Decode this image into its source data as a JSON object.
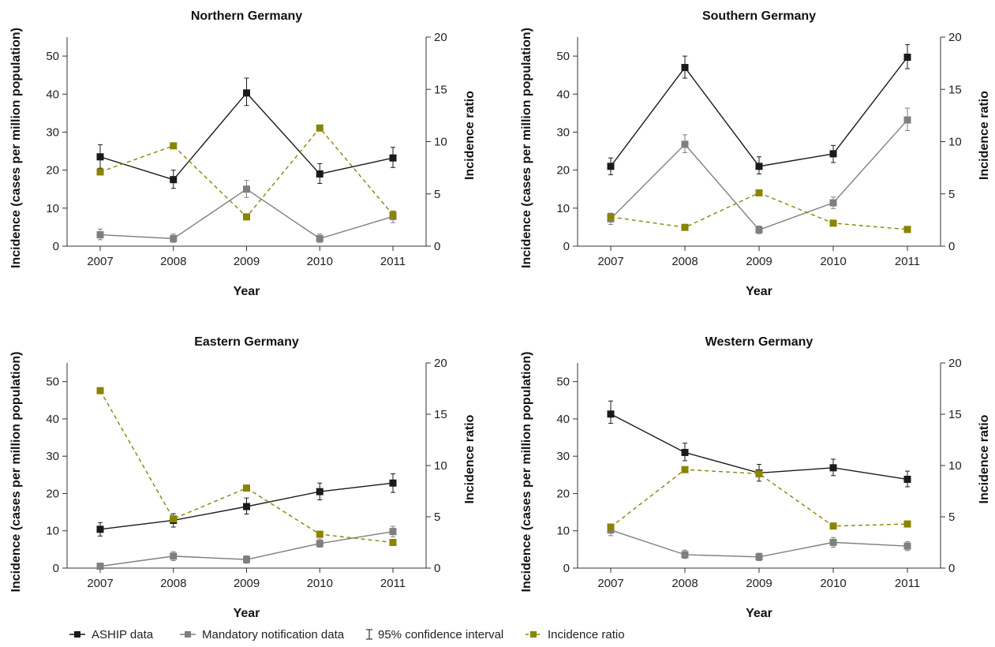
{
  "colors": {
    "ashipColor": "#1a1a1a",
    "mandatoryColor": "#7f7f7f",
    "ratioColor": "#8a8400",
    "axisColor": "#333333"
  },
  "legend": {
    "items": [
      {
        "key": "ashipColor",
        "label": "ASHIP data",
        "style": "line-square"
      },
      {
        "key": "mandatoryColor",
        "label": "Mandatory notification data",
        "style": "line-square"
      },
      {
        "key": "axisColor",
        "label": "95% confidence interval",
        "style": "errorbar"
      },
      {
        "key": "ratioColor",
        "label": "Incidence ratio",
        "style": "dashed-square"
      }
    ]
  },
  "chart_data": [
    {
      "type": "line",
      "title": "Northern Germany",
      "xlabel": "Year",
      "ylabel": "Incidence (cases per million population)",
      "y2label": "Incidence ratio",
      "x": [
        "2007",
        "2008",
        "2009",
        "2010",
        "2011"
      ],
      "ylim": [
        0,
        55
      ],
      "yticks": [
        0,
        10,
        20,
        30,
        40,
        50
      ],
      "y2lim": [
        0,
        20
      ],
      "y2ticks": [
        0,
        5,
        10,
        15,
        20
      ],
      "series": [
        {
          "name": "ASHIP data",
          "axis": "left",
          "values": [
            23.5,
            17.5,
            40.3,
            19.0,
            23.2
          ],
          "ci_low": [
            20.5,
            15.2,
            37.0,
            16.5,
            20.7
          ],
          "ci_high": [
            26.7,
            20.0,
            44.2,
            21.7,
            26.0
          ]
        },
        {
          "name": "Mandatory notification data",
          "axis": "left",
          "values": [
            3.0,
            2.0,
            15.0,
            2.0,
            7.8
          ],
          "ci_low": [
            1.7,
            1.0,
            12.8,
            1.0,
            6.2
          ],
          "ci_high": [
            4.5,
            3.2,
            17.3,
            3.2,
            9.3
          ]
        },
        {
          "name": "Incidence ratio",
          "axis": "right",
          "values": [
            7.1,
            9.6,
            2.8,
            11.3,
            3.0
          ]
        }
      ]
    },
    {
      "type": "line",
      "title": "Southern Germany",
      "xlabel": "Year",
      "ylabel": "Incidence (cases per million population)",
      "y2label": "Incidence ratio",
      "x": [
        "2007",
        "2008",
        "2009",
        "2010",
        "2011"
      ],
      "ylim": [
        0,
        55
      ],
      "yticks": [
        0,
        10,
        20,
        30,
        40,
        50
      ],
      "y2lim": [
        0,
        20
      ],
      "y2ticks": [
        0,
        5,
        10,
        15,
        20
      ],
      "series": [
        {
          "name": "ASHIP data",
          "axis": "left",
          "values": [
            21.0,
            47.0,
            21.0,
            24.3,
            49.7
          ],
          "ci_low": [
            18.8,
            44.2,
            19.0,
            22.0,
            46.7
          ],
          "ci_high": [
            23.2,
            50.0,
            23.5,
            26.5,
            53.0
          ]
        },
        {
          "name": "Mandatory notification data",
          "axis": "left",
          "values": [
            7.2,
            26.8,
            4.3,
            11.4,
            33.2
          ],
          "ci_low": [
            5.7,
            24.6,
            3.3,
            9.9,
            30.4
          ],
          "ci_high": [
            8.7,
            29.3,
            5.3,
            12.9,
            36.3
          ]
        },
        {
          "name": "Incidence ratio",
          "axis": "right",
          "values": [
            2.8,
            1.8,
            5.1,
            2.2,
            1.6
          ]
        }
      ]
    },
    {
      "type": "line",
      "title": "Eastern Germany",
      "xlabel": "Year",
      "ylabel": "Incidence (cases per million population)",
      "y2label": "Incidence ratio",
      "x": [
        "2007",
        "2008",
        "2009",
        "2010",
        "2011"
      ],
      "ylim": [
        0,
        55
      ],
      "yticks": [
        0,
        10,
        20,
        30,
        40,
        50
      ],
      "y2lim": [
        0,
        20
      ],
      "y2ticks": [
        0,
        5,
        10,
        15,
        20
      ],
      "series": [
        {
          "name": "ASHIP data",
          "axis": "left",
          "values": [
            10.4,
            12.8,
            16.5,
            20.5,
            22.8
          ],
          "ci_low": [
            8.6,
            11.0,
            14.5,
            18.3,
            20.3
          ],
          "ci_high": [
            12.2,
            14.6,
            18.8,
            22.8,
            25.3
          ]
        },
        {
          "name": "Mandatory notification data",
          "axis": "left",
          "values": [
            0.5,
            3.2,
            2.3,
            6.6,
            9.8
          ],
          "ci_low": [
            0.0,
            2.0,
            1.3,
            5.6,
            8.4
          ],
          "ci_high": [
            1.3,
            4.4,
            3.3,
            7.8,
            11.2
          ]
        },
        {
          "name": "Incidence ratio",
          "axis": "right",
          "values": [
            17.3,
            4.8,
            7.8,
            3.3,
            2.5
          ]
        }
      ]
    },
    {
      "type": "line",
      "title": "Western Germany",
      "xlabel": "Year",
      "ylabel": "Incidence (cases per million population)",
      "y2label": "Incidence ratio",
      "x": [
        "2007",
        "2008",
        "2009",
        "2010",
        "2011"
      ],
      "ylim": [
        0,
        55
      ],
      "yticks": [
        0,
        10,
        20,
        30,
        40,
        50
      ],
      "y2lim": [
        0,
        20
      ],
      "y2ticks": [
        0,
        5,
        10,
        15,
        20
      ],
      "series": [
        {
          "name": "ASHIP data",
          "axis": "left",
          "values": [
            41.3,
            31.0,
            25.5,
            26.9,
            23.8
          ],
          "ci_low": [
            38.8,
            28.8,
            23.3,
            24.8,
            21.8
          ],
          "ci_high": [
            44.8,
            33.5,
            27.8,
            29.2,
            26.0
          ]
        },
        {
          "name": "Mandatory notification data",
          "axis": "left",
          "values": [
            10.2,
            3.6,
            3.0,
            6.9,
            5.9
          ],
          "ci_low": [
            8.7,
            2.6,
            2.0,
            5.6,
            4.7
          ],
          "ci_high": [
            11.7,
            4.8,
            4.0,
            8.2,
            7.1
          ]
        },
        {
          "name": "Incidence ratio",
          "axis": "right",
          "values": [
            4.0,
            9.6,
            9.2,
            4.1,
            4.3
          ]
        }
      ]
    }
  ]
}
